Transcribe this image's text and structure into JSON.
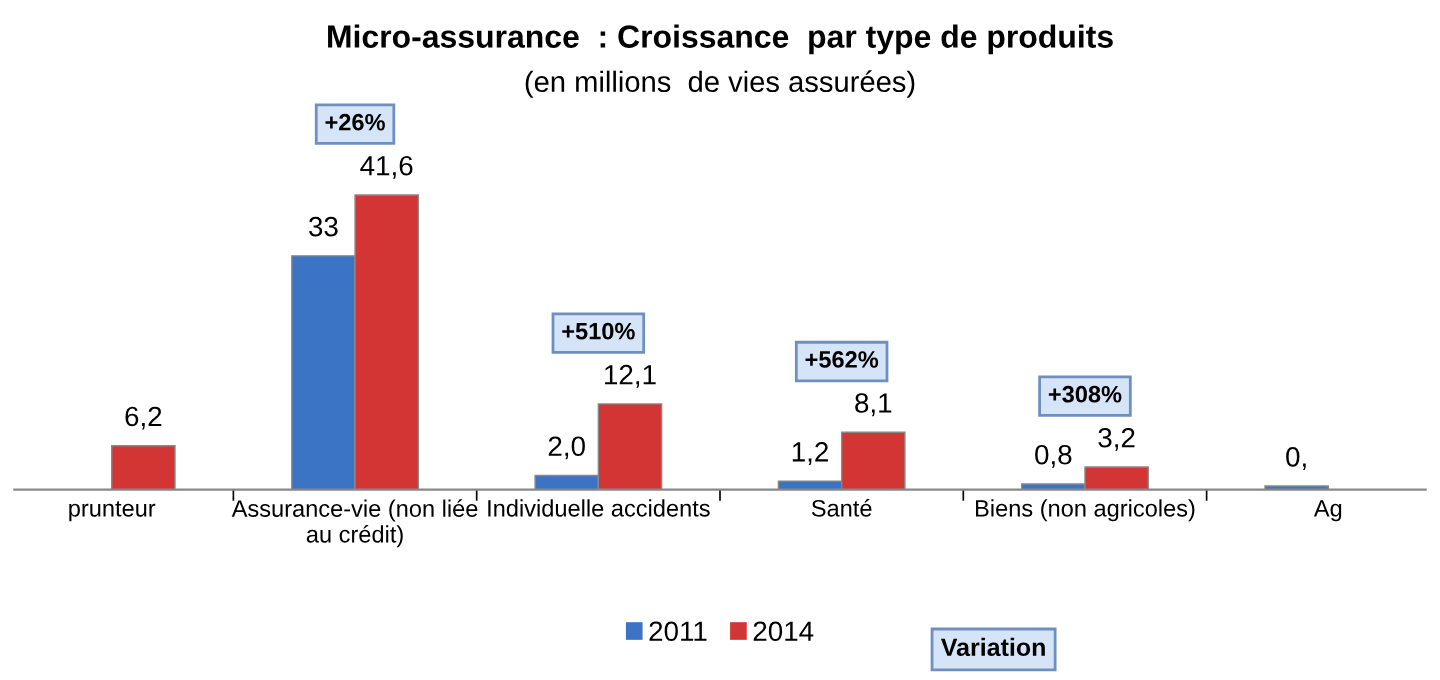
{
  "chart_data": {
    "type": "bar",
    "title": "Micro-assurance  : Croissance  par type de produits",
    "subtitle": "(en millions  de vies assurées)",
    "categories": [
      "prunteur",
      "Assurance-vie (non liée\nau crédit)",
      "Individuelle accidents",
      "Santé",
      "Biens (non agricoles)",
      "Ag"
    ],
    "series": [
      {
        "name": "2011",
        "color": "#3b74c4",
        "values": [
          null,
          33,
          2.0,
          1.2,
          0.8,
          0.5
        ],
        "value_labels": [
          null,
          "33",
          "2,0",
          "1,2",
          "0,8",
          "0,"
        ]
      },
      {
        "name": "2014",
        "color": "#d33434",
        "values": [
          6.2,
          41.6,
          12.1,
          8.1,
          3.2,
          null
        ],
        "value_labels": [
          "6,2",
          "41,6",
          "12,1",
          "8,1",
          "3,2",
          null
        ]
      }
    ],
    "annotations": [
      "+26%",
      "+510%",
      "+562%",
      "+308%",
      "Variation"
    ],
    "legend": "bottom",
    "grid": false
  }
}
